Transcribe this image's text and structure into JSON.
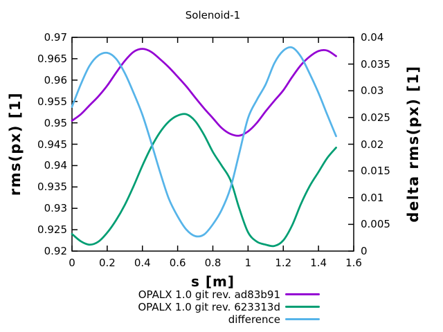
{
  "colors": {
    "background": "#ffffff",
    "frame": "#000000",
    "series_purple": "#9400d3",
    "series_green": "#009e73",
    "series_blue": "#56b4e9"
  },
  "chart_data": {
    "type": "line",
    "title": "Solenoid-1",
    "xlabel": "s [m]",
    "ylabel_left": "rms(px) [1]",
    "ylabel_right": "delta rms(px) [1]",
    "xlim": [
      0,
      1.6
    ],
    "ylim_left": [
      0.92,
      0.97
    ],
    "ylim_right": [
      0,
      0.04
    ],
    "grid": false,
    "legend_position": "below-plot-right",
    "x_ticks": {
      "values": [
        0,
        0.2,
        0.4,
        0.6,
        0.8,
        1,
        1.2,
        1.4,
        1.6
      ],
      "labels": [
        "0",
        "0.2",
        "0.4",
        "0.6",
        "0.8",
        "1",
        "1.2",
        "1.4",
        "1.6"
      ]
    },
    "y_ticks_left": {
      "values": [
        0.92,
        0.925,
        0.93,
        0.935,
        0.94,
        0.945,
        0.95,
        0.955,
        0.96,
        0.965,
        0.97
      ],
      "labels": [
        "0.92",
        "0.925",
        "0.93",
        "0.935",
        "0.94",
        "0.945",
        "0.95",
        "0.955",
        "0.96",
        "0.965",
        "0.97"
      ]
    },
    "y_ticks_right": {
      "values": [
        0,
        0.005,
        0.01,
        0.015,
        0.02,
        0.025,
        0.03,
        0.035,
        0.04
      ],
      "labels": [
        "0",
        "0.005",
        "0.01",
        "0.015",
        "0.02",
        "0.025",
        "0.03",
        "0.035",
        "0.04"
      ]
    },
    "series": [
      {
        "name": "OPALX 1.0 git rev. ad83b91",
        "axis": "left",
        "color": "#9400d3",
        "x": [
          0,
          0.05,
          0.1,
          0.15,
          0.2,
          0.25,
          0.3,
          0.35,
          0.4,
          0.45,
          0.5,
          0.55,
          0.6,
          0.65,
          0.7,
          0.75,
          0.8,
          0.85,
          0.9,
          0.95,
          1,
          1.05,
          1.1,
          1.15,
          1.2,
          1.25,
          1.3,
          1.35,
          1.4,
          1.45,
          1.5
        ],
        "y": [
          0.9505,
          0.952,
          0.9541,
          0.9562,
          0.9587,
          0.9617,
          0.9645,
          0.9666,
          0.9673,
          0.9666,
          0.9649,
          0.963,
          0.9608,
          0.9585,
          0.9559,
          0.9534,
          0.9511,
          0.9488,
          0.9474,
          0.947,
          0.948,
          0.95,
          0.9527,
          0.9552,
          0.9576,
          0.9607,
          0.9635,
          0.9655,
          0.9668,
          0.9669,
          0.9656
        ]
      },
      {
        "name": "OPALX 1.0 git rev. 623313d",
        "axis": "left",
        "color": "#009e73",
        "x": [
          0,
          0.05,
          0.1,
          0.15,
          0.2,
          0.25,
          0.3,
          0.35,
          0.4,
          0.45,
          0.5,
          0.55,
          0.6,
          0.65,
          0.7,
          0.75,
          0.8,
          0.85,
          0.9,
          0.95,
          1,
          1.05,
          1.1,
          1.15,
          1.2,
          1.25,
          1.3,
          1.35,
          1.4,
          1.45,
          1.5
        ],
        "y": [
          0.924,
          0.9223,
          0.9215,
          0.9222,
          0.9243,
          0.9272,
          0.9308,
          0.9352,
          0.94,
          0.9443,
          0.9478,
          0.9503,
          0.9517,
          0.952,
          0.9504,
          0.9472,
          0.9432,
          0.94,
          0.9366,
          0.93,
          0.9244,
          0.9222,
          0.9215,
          0.9212,
          0.9225,
          0.926,
          0.931,
          0.9352,
          0.9385,
          0.9418,
          0.9442
        ]
      },
      {
        "name": "difference",
        "axis": "right",
        "color": "#56b4e9",
        "x": [
          0,
          0.05,
          0.1,
          0.15,
          0.2,
          0.25,
          0.3,
          0.35,
          0.4,
          0.45,
          0.5,
          0.55,
          0.6,
          0.65,
          0.7,
          0.75,
          0.8,
          0.85,
          0.9,
          0.95,
          1,
          1.05,
          1.1,
          1.15,
          1.2,
          1.25,
          1.3,
          1.35,
          1.4,
          1.45,
          1.5
        ],
        "y": [
          0.027,
          0.0312,
          0.0347,
          0.0366,
          0.0371,
          0.036,
          0.0333,
          0.0296,
          0.0255,
          0.0203,
          0.0148,
          0.0098,
          0.0065,
          0.004,
          0.0028,
          0.0031,
          0.005,
          0.0077,
          0.0118,
          0.0183,
          0.0249,
          0.0283,
          0.0312,
          0.0352,
          0.0375,
          0.0381,
          0.0364,
          0.0332,
          0.0296,
          0.0255,
          0.0215
        ]
      }
    ]
  }
}
